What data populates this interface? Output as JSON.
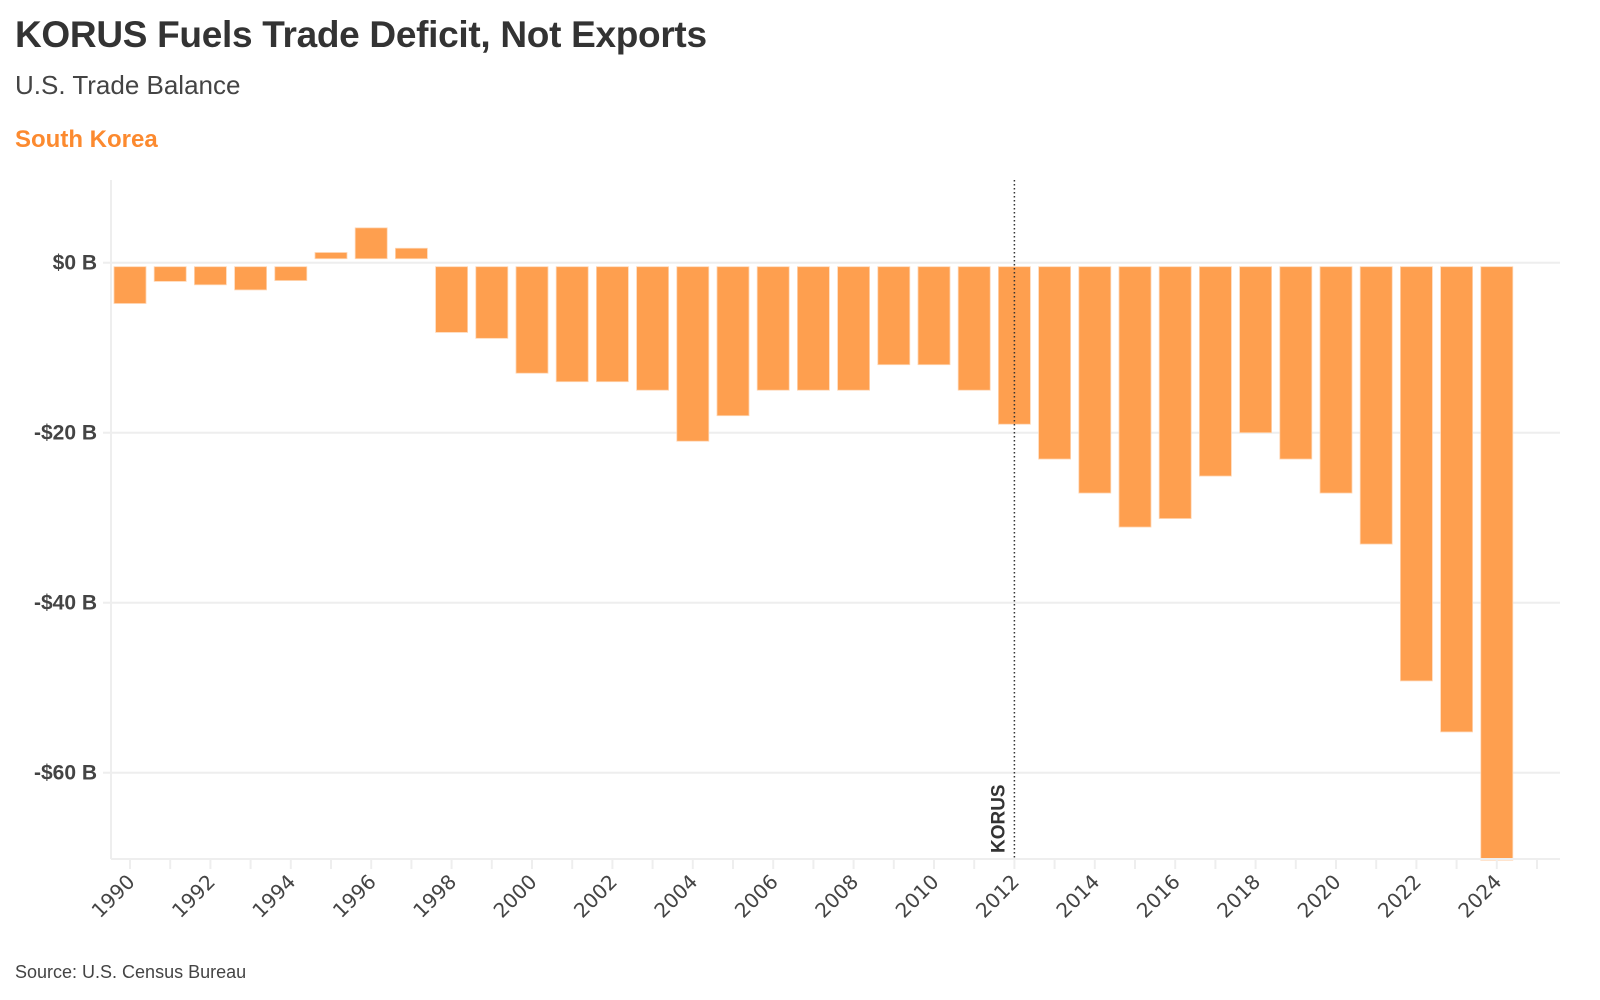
{
  "header": {
    "title": "KORUS Fuels Trade Deficit, Not Exports",
    "subtitle": "U.S. Trade Balance",
    "series_label": "South Korea"
  },
  "footer": {
    "source": "Source: U.S. Census Bureau"
  },
  "colors": {
    "bar": "#fe9f4f",
    "series_label": "#fc8a2f",
    "grid": "#eeeeee",
    "annotation_line": "#333333"
  },
  "chart_data": {
    "type": "bar",
    "title": "KORUS Fuels Trade Deficit, Not Exports",
    "subtitle": "U.S. Trade Balance",
    "series_name": "South Korea",
    "xlabel": "",
    "ylabel": "",
    "units": "USD billions",
    "categories": [
      "1990",
      "1991",
      "1992",
      "1993",
      "1994",
      "1995",
      "1996",
      "1997",
      "1998",
      "1999",
      "2000",
      "2001",
      "2002",
      "2003",
      "2004",
      "2005",
      "2006",
      "2007",
      "2008",
      "2009",
      "2010",
      "2011",
      "2012",
      "2013",
      "2014",
      "2015",
      "2016",
      "2017",
      "2018",
      "2019",
      "2020",
      "2021",
      "2022",
      "2023",
      "2024"
    ],
    "values": [
      -4.8,
      -2.2,
      -2.6,
      -3.2,
      -2.1,
      1.2,
      4.1,
      1.7,
      -8.2,
      -8.9,
      -13.0,
      -14.0,
      -14.0,
      -15.0,
      -21.0,
      -18.0,
      -15.0,
      -15.0,
      -15.0,
      -12.0,
      -12.0,
      -15.0,
      -19.0,
      -23.1,
      -27.1,
      -31.1,
      -30.1,
      -25.1,
      -20.0,
      -23.1,
      -27.1,
      -33.1,
      -49.2,
      -55.2,
      -70.3
    ],
    "ylim": [
      -70.3,
      10
    ],
    "yticks": [
      0,
      -20,
      -40,
      -60
    ],
    "ytick_labels": [
      "$0 B",
      "-$20 B",
      "-$40 B",
      "-$60 B"
    ],
    "xtick_labels": [
      "1990",
      "1992",
      "1994",
      "1996",
      "1998",
      "2000",
      "2002",
      "2004",
      "2006",
      "2008",
      "2010",
      "2012",
      "2014",
      "2016",
      "2018",
      "2020",
      "2022",
      "2024"
    ],
    "grid": true,
    "legend": "none",
    "annotations": [
      {
        "type": "vertical-line",
        "x": "2012",
        "label": "KORUS",
        "style": "dotted"
      }
    ]
  }
}
